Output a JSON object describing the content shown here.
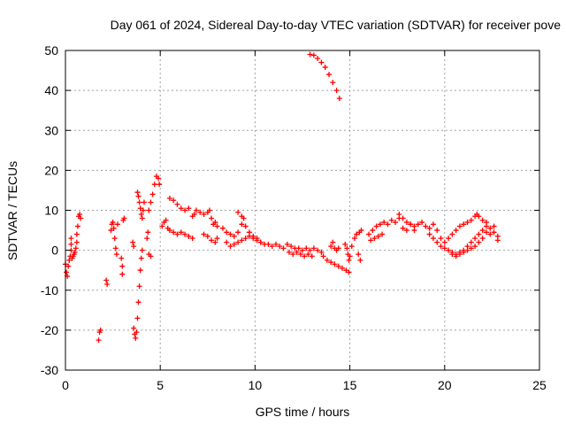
{
  "chart_data": {
    "type": "scatter",
    "title": "Day 061 of 2024, Sidereal Day-to-day VTEC variation (SDTVAR) for receiver pove",
    "xlabel": "GPS time / hours",
    "ylabel": "SDTVAR / TECUs",
    "xlim": [
      0,
      25
    ],
    "ylim": [
      -30,
      50
    ],
    "xticks": [
      "0",
      "5",
      "10",
      "15",
      "20",
      "25"
    ],
    "yticks": [
      "-30",
      "-20",
      "-10",
      "0",
      "10",
      "20",
      "30",
      "40",
      "50"
    ],
    "grid": true,
    "marker": "plus",
    "color": "#ff0000",
    "series": [
      {
        "name": "SDTVAR",
        "points": [
          [
            0.0,
            -3.5
          ],
          [
            0.05,
            -5.5
          ],
          [
            0.1,
            -6.5
          ],
          [
            0.15,
            -4.0
          ],
          [
            0.2,
            -2.5
          ],
          [
            0.25,
            -1.5
          ],
          [
            0.3,
            0.0
          ],
          [
            0.3,
            1.5
          ],
          [
            0.3,
            3.0
          ],
          [
            0.35,
            -2.0
          ],
          [
            0.4,
            -1.5
          ],
          [
            0.45,
            -1.0
          ],
          [
            0.5,
            -0.5
          ],
          [
            0.55,
            0.5
          ],
          [
            0.6,
            2.0
          ],
          [
            0.6,
            4.0
          ],
          [
            0.65,
            6.0
          ],
          [
            0.7,
            8.5
          ],
          [
            0.75,
            9.0
          ],
          [
            0.8,
            8.0
          ],
          [
            1.75,
            -22.5
          ],
          [
            1.8,
            -20.5
          ],
          [
            1.85,
            -20.0
          ],
          [
            2.15,
            -7.5
          ],
          [
            2.2,
            -8.5
          ],
          [
            2.4,
            5.0
          ],
          [
            2.45,
            6.5
          ],
          [
            2.5,
            7.0
          ],
          [
            2.55,
            5.5
          ],
          [
            2.6,
            3.0
          ],
          [
            2.65,
            0.5
          ],
          [
            2.7,
            -1.0
          ],
          [
            2.75,
            6.5
          ],
          [
            2.95,
            -2.0
          ],
          [
            3.0,
            -4.0
          ],
          [
            3.0,
            -6.0
          ],
          [
            3.05,
            7.5
          ],
          [
            3.1,
            8.0
          ],
          [
            3.55,
            2.0
          ],
          [
            3.6,
            1.0
          ],
          [
            3.6,
            -19.5
          ],
          [
            3.65,
            -21.0
          ],
          [
            3.7,
            -22.0
          ],
          [
            3.75,
            -20.5
          ],
          [
            3.8,
            -17.0
          ],
          [
            3.85,
            -13.0
          ],
          [
            3.9,
            -9.0
          ],
          [
            3.95,
            -5.0
          ],
          [
            4.0,
            -2.0
          ],
          [
            4.05,
            0.0
          ],
          [
            3.8,
            14.5
          ],
          [
            3.85,
            13.5
          ],
          [
            3.9,
            12.0
          ],
          [
            3.95,
            10.5
          ],
          [
            4.0,
            9.0
          ],
          [
            4.05,
            8.0
          ],
          [
            4.1,
            10.0
          ],
          [
            4.15,
            12.0
          ],
          [
            4.3,
            3.0
          ],
          [
            4.35,
            4.5
          ],
          [
            4.4,
            -1.0
          ],
          [
            4.5,
            -1.5
          ],
          [
            4.4,
            10.0
          ],
          [
            4.5,
            12.0
          ],
          [
            4.6,
            14.0
          ],
          [
            4.7,
            16.5
          ],
          [
            4.8,
            18.5
          ],
          [
            4.9,
            18.0
          ],
          [
            4.95,
            16.5
          ],
          [
            5.1,
            6.0
          ],
          [
            5.2,
            7.0
          ],
          [
            5.3,
            7.5
          ],
          [
            5.4,
            5.5
          ],
          [
            5.5,
            5.0
          ],
          [
            5.7,
            4.5
          ],
          [
            5.9,
            4.0
          ],
          [
            6.1,
            4.5
          ],
          [
            6.3,
            4.0
          ],
          [
            6.5,
            3.5
          ],
          [
            6.7,
            3.0
          ],
          [
            5.5,
            13.0
          ],
          [
            5.7,
            12.5
          ],
          [
            5.9,
            11.5
          ],
          [
            6.1,
            10.5
          ],
          [
            6.3,
            10.0
          ],
          [
            6.5,
            10.5
          ],
          [
            6.7,
            8.5
          ],
          [
            6.8,
            9.0
          ],
          [
            6.9,
            10.0
          ],
          [
            7.1,
            9.5
          ],
          [
            7.3,
            9.0
          ],
          [
            7.5,
            9.5
          ],
          [
            7.6,
            10.0
          ],
          [
            7.7,
            8.0
          ],
          [
            7.8,
            6.5
          ],
          [
            7.9,
            7.0
          ],
          [
            8.0,
            6.0
          ],
          [
            7.3,
            4.0
          ],
          [
            7.5,
            3.5
          ],
          [
            7.7,
            2.5
          ],
          [
            7.9,
            2.0
          ],
          [
            8.0,
            3.0
          ],
          [
            8.3,
            5.5
          ],
          [
            8.5,
            4.5
          ],
          [
            8.7,
            4.0
          ],
          [
            8.9,
            3.5
          ],
          [
            9.1,
            4.5
          ],
          [
            9.3,
            6.5
          ],
          [
            9.4,
            8.0
          ],
          [
            8.5,
            2.0
          ],
          [
            8.7,
            1.0
          ],
          [
            8.9,
            1.5
          ],
          [
            9.1,
            2.0
          ],
          [
            9.3,
            2.5
          ],
          [
            9.5,
            3.0
          ],
          [
            9.7,
            3.5
          ],
          [
            9.9,
            3.0
          ],
          [
            10.1,
            2.5
          ],
          [
            10.3,
            2.0
          ],
          [
            9.1,
            9.5
          ],
          [
            9.3,
            8.5
          ],
          [
            9.5,
            6.0
          ],
          [
            9.7,
            4.5
          ],
          [
            9.9,
            3.5
          ],
          [
            10.1,
            3.0
          ],
          [
            10.3,
            2.0
          ],
          [
            10.5,
            1.5
          ],
          [
            10.7,
            1.5
          ],
          [
            10.9,
            1.0
          ],
          [
            11.1,
            1.5
          ],
          [
            11.3,
            1.0
          ],
          [
            11.5,
            0.5
          ],
          [
            11.7,
            1.5
          ],
          [
            11.9,
            1.0
          ],
          [
            12.1,
            0.5
          ],
          [
            12.3,
            0.5
          ],
          [
            12.5,
            0.0
          ],
          [
            12.7,
            0.5
          ],
          [
            12.9,
            0.0
          ],
          [
            13.1,
            0.5
          ],
          [
            13.3,
            0.0
          ],
          [
            13.5,
            -0.5
          ],
          [
            11.8,
            -0.5
          ],
          [
            12.0,
            -1.0
          ],
          [
            12.2,
            -0.5
          ],
          [
            12.4,
            -1.0
          ],
          [
            12.6,
            -1.5
          ],
          [
            12.8,
            -1.0
          ],
          [
            13.0,
            -1.5
          ],
          [
            13.6,
            -1.5
          ],
          [
            13.8,
            -2.5
          ],
          [
            14.0,
            -3.0
          ],
          [
            14.2,
            -3.5
          ],
          [
            14.4,
            -4.0
          ],
          [
            14.6,
            -4.5
          ],
          [
            14.8,
            -5.0
          ],
          [
            14.95,
            -5.5
          ],
          [
            14.0,
            1.0
          ],
          [
            14.1,
            2.0
          ],
          [
            14.2,
            0.5
          ],
          [
            14.3,
            0.0
          ],
          [
            14.4,
            0.5
          ],
          [
            14.75,
            1.5
          ],
          [
            14.85,
            0.5
          ],
          [
            14.9,
            -1.0
          ],
          [
            14.95,
            -2.5
          ],
          [
            15.0,
            -1.5
          ],
          [
            15.1,
            1.0
          ],
          [
            15.25,
            3.0
          ],
          [
            15.35,
            4.0
          ],
          [
            15.45,
            -1.0
          ],
          [
            15.55,
            -2.5
          ],
          [
            15.5,
            4.5
          ],
          [
            15.6,
            5.0
          ],
          [
            12.9,
            49.0
          ],
          [
            13.1,
            48.8
          ],
          [
            13.3,
            48.0
          ],
          [
            13.5,
            47.0
          ],
          [
            13.7,
            45.8
          ],
          [
            13.9,
            44.0
          ],
          [
            14.1,
            42.0
          ],
          [
            14.3,
            40.0
          ],
          [
            14.45,
            38.0
          ],
          [
            16.0,
            4.0
          ],
          [
            16.2,
            5.0
          ],
          [
            16.4,
            6.0
          ],
          [
            16.6,
            6.5
          ],
          [
            16.8,
            7.0
          ],
          [
            17.0,
            6.5
          ],
          [
            17.2,
            7.5
          ],
          [
            17.4,
            7.0
          ],
          [
            17.6,
            8.0
          ],
          [
            16.1,
            2.5
          ],
          [
            16.3,
            3.0
          ],
          [
            16.5,
            3.5
          ],
          [
            16.7,
            4.0
          ],
          [
            17.6,
            9.0
          ],
          [
            17.8,
            8.0
          ],
          [
            18.0,
            7.0
          ],
          [
            18.2,
            6.5
          ],
          [
            18.4,
            6.0
          ],
          [
            18.6,
            6.5
          ],
          [
            18.8,
            7.0
          ],
          [
            19.0,
            6.0
          ],
          [
            19.2,
            5.5
          ],
          [
            17.8,
            5.5
          ],
          [
            18.0,
            5.0
          ],
          [
            18.2,
            6.5
          ],
          [
            18.4,
            5.0
          ],
          [
            19.2,
            4.0
          ],
          [
            19.4,
            3.0
          ],
          [
            19.6,
            2.0
          ],
          [
            19.8,
            1.0
          ],
          [
            20.0,
            0.5
          ],
          [
            20.2,
            0.0
          ],
          [
            20.4,
            -0.5
          ],
          [
            20.6,
            -1.0
          ],
          [
            20.8,
            -0.5
          ],
          [
            21.0,
            0.0
          ],
          [
            21.2,
            1.0
          ],
          [
            21.4,
            2.0
          ],
          [
            21.6,
            3.0
          ],
          [
            21.8,
            4.0
          ],
          [
            22.0,
            5.0
          ],
          [
            19.4,
            6.5
          ],
          [
            19.6,
            5.0
          ],
          [
            19.8,
            3.0
          ],
          [
            20.0,
            2.0
          ],
          [
            20.2,
            3.0
          ],
          [
            20.4,
            4.0
          ],
          [
            20.6,
            5.0
          ],
          [
            20.8,
            6.0
          ],
          [
            21.0,
            6.5
          ],
          [
            21.2,
            7.0
          ],
          [
            21.4,
            7.5
          ],
          [
            21.6,
            8.5
          ],
          [
            21.7,
            9.0
          ],
          [
            21.8,
            8.5
          ],
          [
            22.0,
            7.5
          ],
          [
            22.2,
            7.0
          ],
          [
            20.4,
            -1.0
          ],
          [
            20.6,
            -1.5
          ],
          [
            20.8,
            -1.0
          ],
          [
            21.0,
            -0.5
          ],
          [
            21.2,
            0.0
          ],
          [
            21.4,
            0.5
          ],
          [
            21.6,
            1.0
          ],
          [
            21.8,
            2.0
          ],
          [
            22.0,
            3.0
          ],
          [
            22.2,
            4.5
          ],
          [
            22.2,
            6.0
          ],
          [
            22.4,
            5.5
          ],
          [
            22.6,
            4.5
          ],
          [
            22.8,
            3.5
          ],
          [
            22.6,
            6.0
          ],
          [
            22.4,
            4.0
          ],
          [
            22.8,
            2.5
          ]
        ]
      }
    ]
  }
}
